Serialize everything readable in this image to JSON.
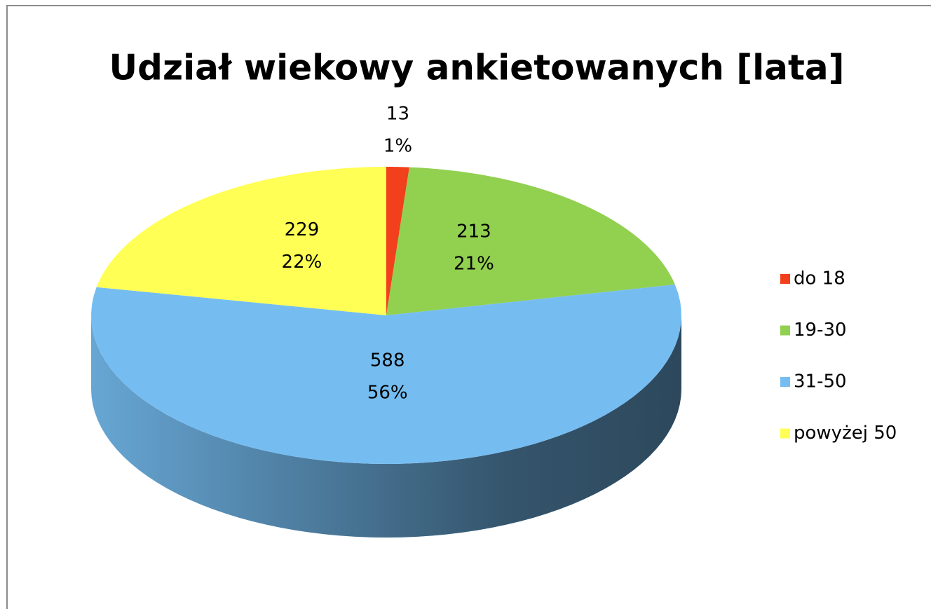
{
  "chart_data": {
    "type": "pie3d",
    "title": "Udział wiekowy ankietowanych [lata]",
    "categories": [
      "do 18",
      "19-30",
      "31-50",
      "powyżej 50"
    ],
    "values": [
      13,
      213,
      588,
      229
    ],
    "percentages": [
      1,
      21,
      56,
      22
    ],
    "percentage_labels": [
      "1%",
      "21%",
      "56%",
      "22%"
    ],
    "colors": [
      "#f2401c",
      "#92d050",
      "#75bdf1",
      "#ffff55"
    ],
    "legend": "right"
  }
}
